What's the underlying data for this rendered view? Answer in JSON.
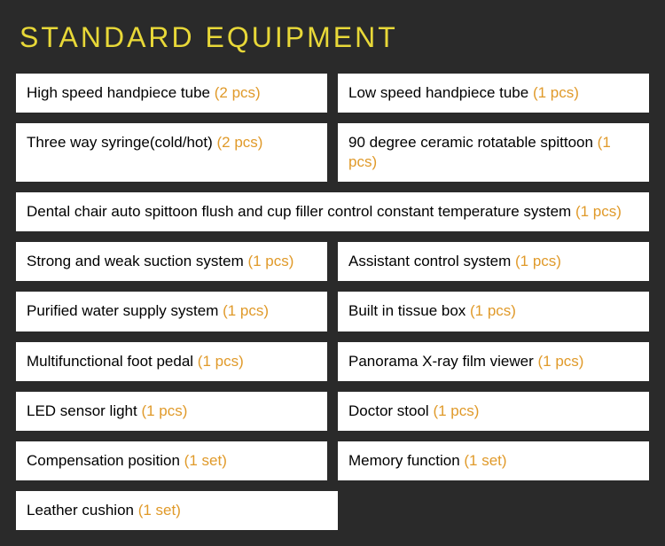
{
  "title": "STANDARD EQUIPMENT",
  "colors": {
    "background": "#2a2a2a",
    "title_color": "#e8d838",
    "cell_bg": "#ffffff",
    "text_color": "#000000",
    "qty_color": "#e09a2a"
  },
  "title_fontsize": 32,
  "cell_fontsize": 17,
  "rows": [
    {
      "type": "pair",
      "left": {
        "label": "High speed handpiece tube ",
        "qty": "(2 pcs)"
      },
      "right": {
        "label": "Low speed handpiece tube ",
        "qty": "(1 pcs)"
      }
    },
    {
      "type": "pair",
      "left": {
        "label": "Three way syringe(cold/hot) ",
        "qty": "(2 pcs)"
      },
      "right": {
        "label": "90 degree ceramic rotatable spittoon ",
        "qty": "(1 pcs)"
      }
    },
    {
      "type": "full",
      "center": {
        "label": "Dental chair auto spittoon flush and cup filler control constant temperature system ",
        "qty": "(1 pcs)"
      }
    },
    {
      "type": "pair",
      "left": {
        "label": "Strong and weak suction system ",
        "qty": "(1 pcs)"
      },
      "right": {
        "label": "Assistant control system ",
        "qty": "(1 pcs)"
      }
    },
    {
      "type": "pair",
      "left": {
        "label": "Purified water supply system ",
        "qty": "(1 pcs)"
      },
      "right": {
        "label": "Built in tissue box  ",
        "qty": "(1 pcs)"
      }
    },
    {
      "type": "pair",
      "left": {
        "label": "Multifunctional foot pedal ",
        "qty": "(1 pcs)"
      },
      "right": {
        "label": "Panorama X-ray film viewer ",
        "qty": "(1 pcs)"
      }
    },
    {
      "type": "pair",
      "left": {
        "label": "LED sensor light ",
        "qty": "(1 pcs)"
      },
      "right": {
        "label": "Doctor stool ",
        "qty": "(1 pcs)"
      }
    },
    {
      "type": "pair",
      "left": {
        "label": "Compensation position ",
        "qty": "(1 set)"
      },
      "right": {
        "label": "Memory function ",
        "qty": "(1 set)"
      }
    },
    {
      "type": "left_only",
      "left": {
        "label": "Leather cushion ",
        "qty": "(1 set)"
      }
    }
  ]
}
